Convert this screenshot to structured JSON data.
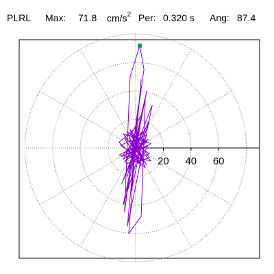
{
  "header": {
    "station": "PLRL",
    "max_label": "Max:",
    "max_value": "71.8",
    "max_unit": "cm/s",
    "max_unit_exp": "2",
    "per_label": "Per:",
    "per_value": "0.320 s",
    "ang_label": "Ang:",
    "ang_value": "87.4"
  },
  "chart_data": {
    "type": "polar",
    "radial_ticks": [
      20,
      40,
      60
    ],
    "radial_rings": [
      20,
      40,
      60,
      80
    ],
    "spokes_deg": 30,
    "grid": true,
    "colors": {
      "trace": "#8800cc",
      "max_marker": "#009977",
      "grid": "#808080",
      "axis": "#000000"
    },
    "max_point": {
      "x": 3.0,
      "y": 71.8
    },
    "trace": [
      [
        0,
        0
      ],
      [
        3,
        6
      ],
      [
        -4,
        10
      ],
      [
        6,
        -8
      ],
      [
        -7,
        -3
      ],
      [
        8,
        4
      ],
      [
        -5,
        9
      ],
      [
        2,
        -11
      ],
      [
        9,
        2
      ],
      [
        -10,
        -6
      ],
      [
        5,
        12
      ],
      [
        -3,
        -9
      ],
      [
        10,
        -4
      ],
      [
        -8,
        7
      ],
      [
        4,
        -13
      ],
      [
        -6,
        11
      ],
      [
        11,
        3
      ],
      [
        -9,
        -8
      ],
      [
        3,
        14
      ],
      [
        -2,
        -12
      ],
      [
        8,
        9
      ],
      [
        -11,
        2
      ],
      [
        6,
        -10
      ],
      [
        -4,
        13
      ],
      [
        10,
        -7
      ],
      [
        -7,
        -11
      ],
      [
        1,
        15
      ],
      [
        -12,
        4
      ],
      [
        7,
        -14
      ],
      [
        -3,
        10
      ],
      [
        5,
        25
      ],
      [
        -6,
        -20
      ],
      [
        8,
        40
      ],
      [
        -7,
        -35
      ],
      [
        6,
        55
      ],
      [
        3,
        71.8
      ],
      [
        -4,
        50
      ],
      [
        -8,
        -45
      ],
      [
        2,
        30
      ],
      [
        -5,
        -60
      ],
      [
        4,
        -48
      ],
      [
        7,
        35
      ],
      [
        -9,
        -40
      ],
      [
        10,
        20
      ],
      [
        -10,
        -25
      ],
      [
        12,
        30
      ],
      [
        -6,
        -55
      ],
      [
        4,
        48
      ],
      [
        -3,
        -30
      ],
      [
        6,
        12
      ],
      [
        -8,
        -10
      ],
      [
        9,
        6
      ],
      [
        -12,
        -5
      ],
      [
        11,
        -9
      ],
      [
        -5,
        7
      ],
      [
        8,
        -12
      ],
      [
        -9,
        10
      ],
      [
        6,
        5
      ],
      [
        -4,
        -7
      ],
      [
        2,
        3
      ],
      [
        0,
        0
      ]
    ]
  }
}
